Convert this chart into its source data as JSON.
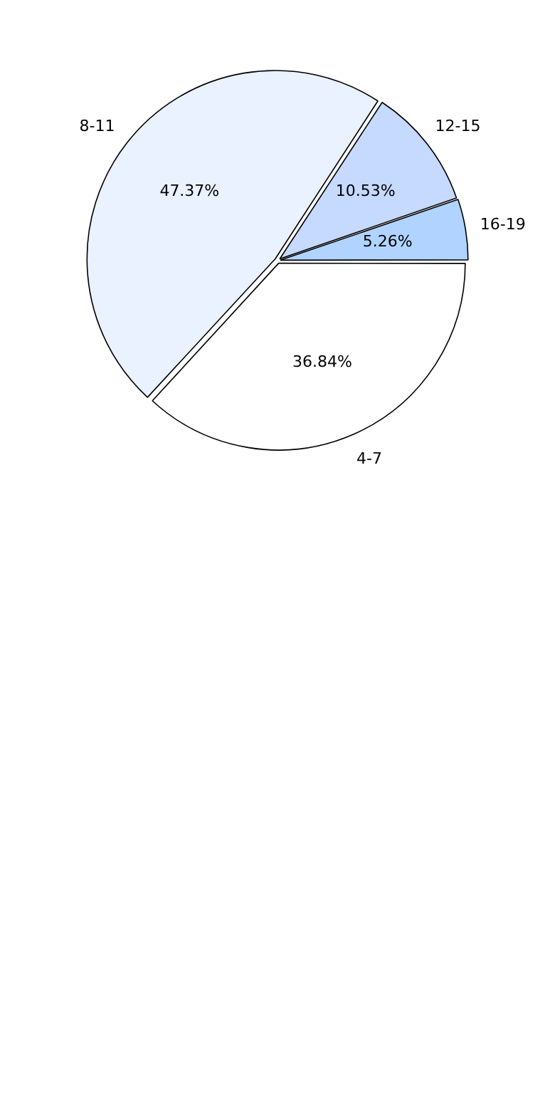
{
  "chart_data": {
    "type": "pie",
    "categories": [
      "4-7",
      "8-11",
      "12-15",
      "16-19"
    ],
    "values": [
      36.84,
      47.37,
      10.53,
      5.26
    ],
    "value_labels": [
      "36.84%",
      "47.37%",
      "10.53%",
      "5.26%"
    ],
    "colors": [
      "#ffffff",
      "#eaf1ff",
      "#c6d9ff",
      "#b0d4ff"
    ],
    "legend": false
  }
}
